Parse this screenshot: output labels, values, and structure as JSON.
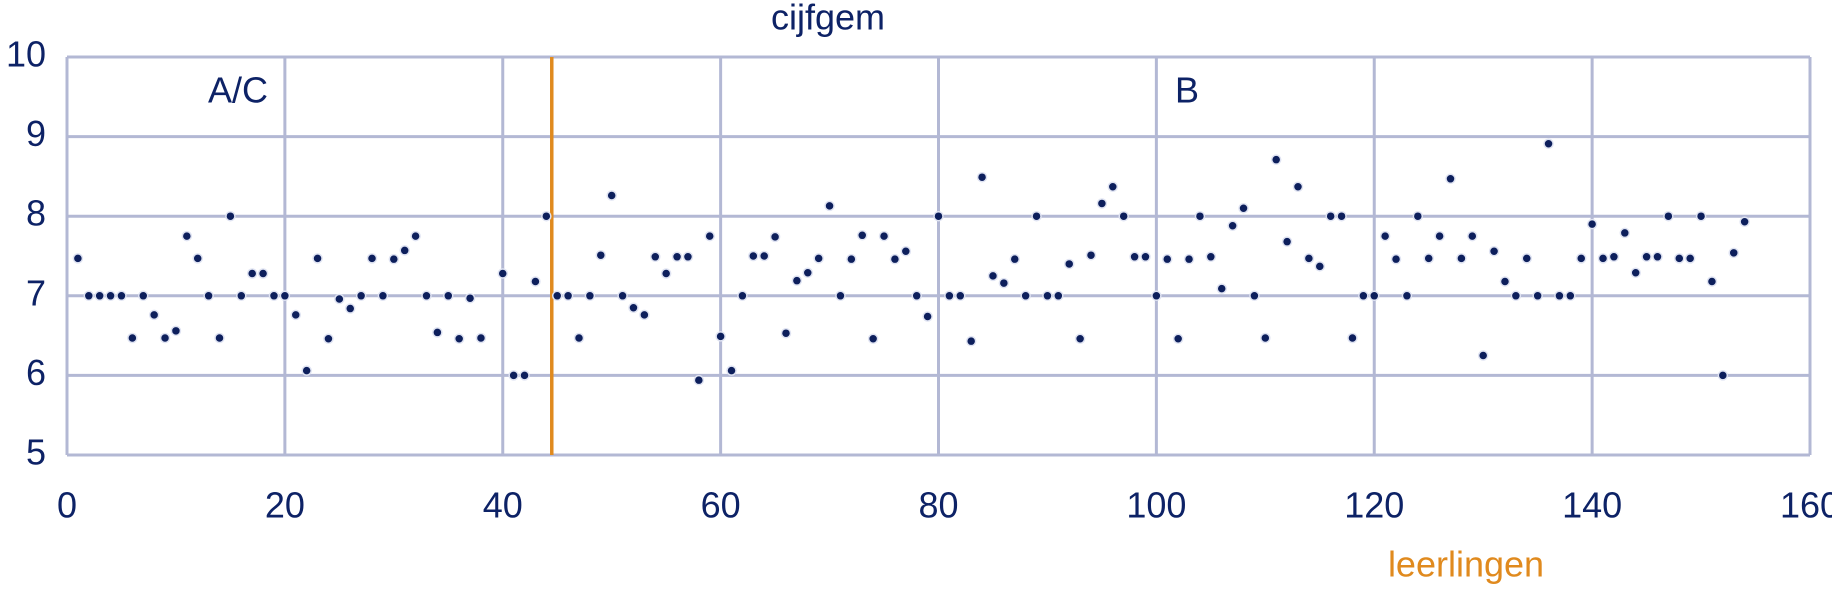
{
  "chart_data": {
    "type": "scatter",
    "title": "cijfgem",
    "x_label": "leerlingen",
    "annotations": [
      "A/C",
      "B"
    ],
    "x": [
      1,
      2,
      3,
      4,
      5,
      6,
      7,
      8,
      9,
      10,
      11,
      12,
      13,
      14,
      15,
      16,
      17,
      18,
      19,
      20,
      21,
      22,
      23,
      24,
      25,
      26,
      27,
      28,
      29,
      30,
      31,
      32,
      33,
      34,
      35,
      36,
      37,
      38,
      40,
      41,
      42,
      43,
      44,
      45,
      46,
      47,
      48,
      49,
      50,
      51,
      52,
      53,
      54,
      55,
      56,
      57,
      58,
      59,
      60,
      61,
      62,
      63,
      64,
      65,
      66,
      67,
      68,
      69,
      70,
      71,
      72,
      73,
      74,
      75,
      76,
      77,
      78,
      79,
      80,
      81,
      82,
      83,
      84,
      85,
      86,
      87,
      88,
      89,
      90,
      91,
      92,
      93,
      94,
      95,
      96,
      97,
      98,
      99,
      100,
      101,
      102,
      103,
      104,
      105,
      106,
      107,
      108,
      109,
      110,
      111,
      112,
      113,
      114,
      115,
      116,
      117,
      118,
      119,
      120,
      121,
      122,
      123,
      124,
      125,
      126,
      127,
      128,
      129,
      130,
      131,
      132,
      133,
      134,
      135,
      136,
      137,
      138,
      139,
      140,
      141,
      142,
      143,
      144,
      145,
      146,
      147,
      148,
      149,
      150,
      151,
      152,
      153,
      154
    ],
    "values": [
      7.47,
      7,
      7,
      7,
      7,
      6.47,
      7,
      6.76,
      6.47,
      6.56,
      7.75,
      7.47,
      7,
      6.47,
      8,
      7,
      7.28,
      7.28,
      7,
      7,
      6.76,
      6.06,
      7.47,
      6.46,
      6.96,
      6.84,
      7,
      7.47,
      7,
      7.46,
      7.57,
      7.75,
      7,
      6.54,
      7,
      6.46,
      6.97,
      6.47,
      7.28,
      6,
      6,
      7.18,
      8,
      7,
      7,
      6.47,
      7,
      7.51,
      8.26,
      7,
      6.85,
      6.76,
      7.49,
      7.28,
      7.49,
      7.49,
      5.94,
      7.75,
      6.49,
      6.06,
      7,
      7.5,
      7.5,
      7.74,
      6.53,
      7.19,
      7.29,
      7.47,
      8.13,
      7,
      7.46,
      7.76,
      6.46,
      7.75,
      7.46,
      7.56,
      7,
      6.74,
      8,
      7,
      7,
      6.43,
      8.49,
      7.25,
      7.16,
      7.46,
      7,
      8,
      7,
      7,
      7.4,
      6.46,
      7.51,
      8.16,
      8.37,
      8,
      7.49,
      7.49,
      7,
      7.46,
      6.46,
      7.46,
      8,
      7.49,
      7.09,
      7.88,
      8.1,
      7,
      6.47,
      8.71,
      7.68,
      8.37,
      7.47,
      7.37,
      8,
      8,
      6.47,
      7,
      7,
      7.75,
      7.46,
      7,
      8,
      7.47,
      7.75,
      8.47,
      7.47,
      7.75,
      6.25,
      7.56,
      7.18,
      7,
      7.47,
      7,
      8.91,
      7,
      7,
      7.47,
      7.9,
      7.47,
      7.49,
      7.79,
      7.29,
      7.49,
      7.49,
      8,
      7.47,
      7.47,
      8,
      7.18,
      6,
      7.54,
      7.93
    ],
    "color": "#0d1f5c",
    "reference_line": {
      "x": 44.5,
      "color": "#e08a1e"
    },
    "xlim": [
      0,
      160
    ],
    "xticks": [
      0,
      20,
      40,
      60,
      80,
      100,
      120,
      140,
      160
    ],
    "ylim": [
      5,
      10
    ],
    "yticks": [
      5,
      6,
      7,
      8,
      9,
      10
    ],
    "grid": true
  }
}
